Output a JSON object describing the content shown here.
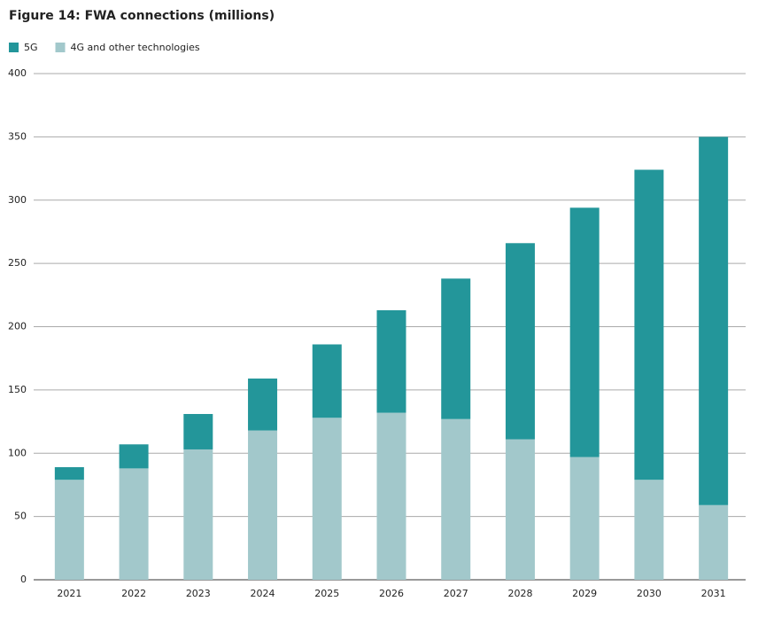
{
  "chart_data": {
    "type": "stacked_bar",
    "title": "Figure 14: FWA connections (millions)",
    "categories": [
      "2021",
      "2022",
      "2023",
      "2024",
      "2025",
      "2026",
      "2027",
      "2028",
      "2029",
      "2030",
      "2031"
    ],
    "series": [
      {
        "name": "5G",
        "color": "#23969a",
        "values": [
          10,
          19,
          28,
          41,
          58,
          81,
          111,
          155,
          197,
          245,
          291
        ]
      },
      {
        "name": "4G and other technologies",
        "color": "#a2c8cb",
        "values": [
          79,
          88,
          103,
          118,
          128,
          132,
          127,
          111,
          97,
          79,
          59
        ]
      }
    ],
    "ylim": [
      0,
      400
    ],
    "yticks": [
      0,
      50,
      100,
      150,
      200,
      250,
      300,
      350,
      400
    ],
    "grid": true
  }
}
